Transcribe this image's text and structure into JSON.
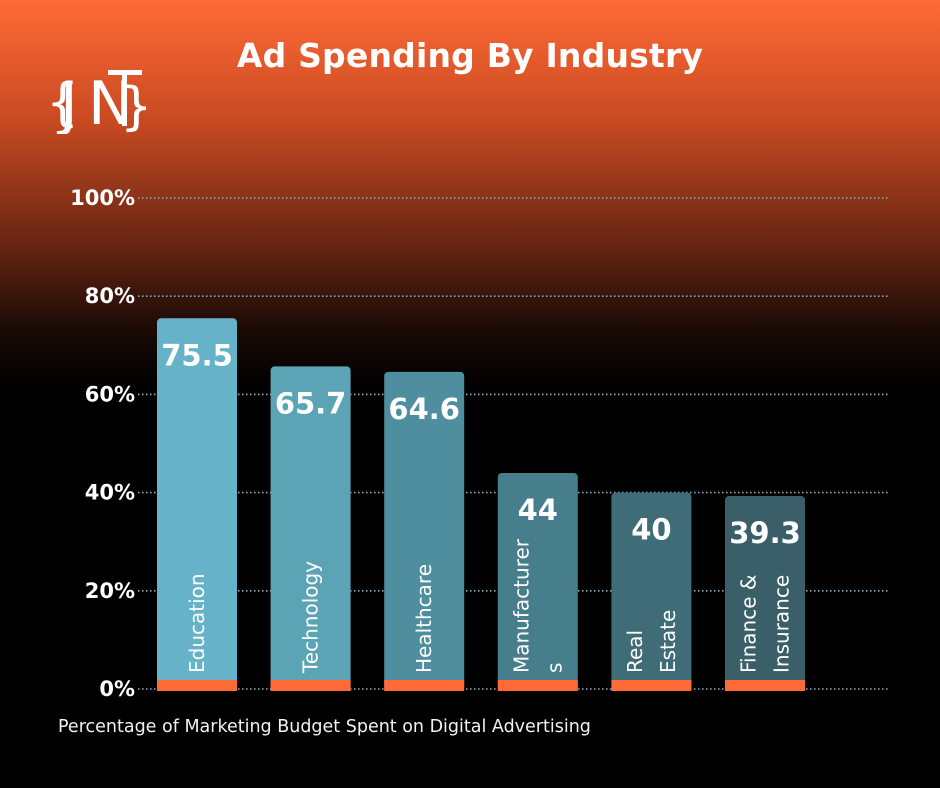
{
  "brand": {
    "logo_text": "JNT"
  },
  "colors": {
    "bars": [
      "#66b3c9",
      "#5aa4b6",
      "#4f8e9e",
      "#477e8b",
      "#3f6c77",
      "#3a5f68"
    ],
    "base_strip": "#ff6a36",
    "gridline": "#8ab4c4"
  },
  "chart_data": {
    "type": "bar",
    "title": "Ad Spending By Industry",
    "categories": [
      "Education",
      "Technology",
      "Healthcare",
      "Manufacturers",
      "Real Estate",
      "Finance & Insurance"
    ],
    "category_label_lines": [
      [
        "Education"
      ],
      [
        "Technology"
      ],
      [
        "Healthcare"
      ],
      [
        "Manufacturer",
        "s"
      ],
      [
        "Real",
        "Estate"
      ],
      [
        "Finance &",
        "Insurance"
      ]
    ],
    "values": [
      75.5,
      65.7,
      64.6,
      44,
      40,
      39.3
    ],
    "data_labels": [
      "75.5",
      "65.7",
      "64.6",
      "44",
      "40",
      "39.3"
    ],
    "ylim": [
      0,
      100
    ],
    "yticks": [
      0,
      20,
      40,
      60,
      80,
      100
    ],
    "ytick_labels": [
      "0%",
      "20%",
      "40%",
      "60%",
      "80%",
      "100%"
    ],
    "grid": true,
    "xlabel": "Percentage of Marketing Budget Spent on Digital Advertising",
    "ylabel": ""
  }
}
